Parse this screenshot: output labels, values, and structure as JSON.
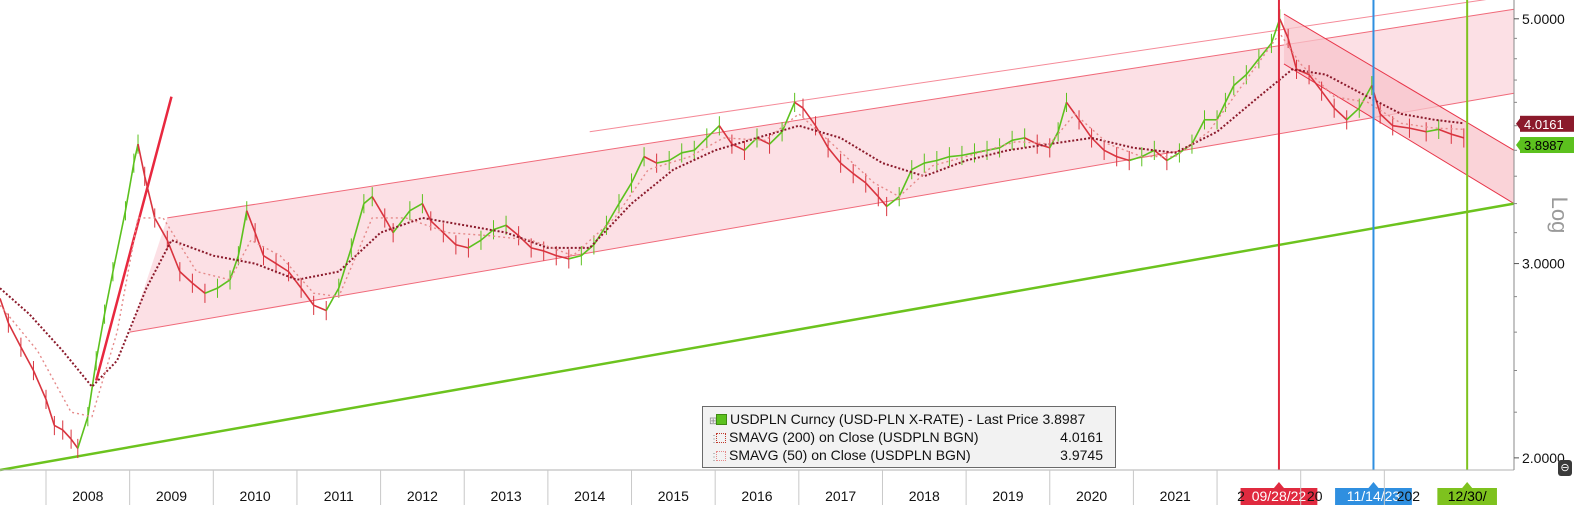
{
  "chart_data": {
    "type": "line",
    "y_scale": "log",
    "ylim": [
      1.95,
      5.2
    ],
    "y_ticks": [
      {
        "value": 5.0,
        "label": "5.0000"
      },
      {
        "value": 3.0,
        "label": "3.0000"
      },
      {
        "value": 2.0,
        "label": "2.0000"
      }
    ],
    "x_ticks": [
      "2008",
      "2009",
      "2010",
      "2011",
      "2012",
      "2013",
      "2014",
      "2015",
      "2016",
      "2017",
      "2018",
      "2019",
      "2020",
      "2021",
      "2022",
      "2023",
      "2024"
    ],
    "x_range": [
      2007.45,
      2025.55
    ],
    "axis_label_right": "Log",
    "last_price_tag": {
      "value": 3.8987,
      "label": "3.8987",
      "color": "#5cc11e"
    },
    "sma200_tag": {
      "value": 4.0161,
      "label": "4.0161",
      "color": "#8b1a2b"
    },
    "series": [
      {
        "name": "USDPLN Curncy (USD-PLN X-RATE) - Last Price 3.8987",
        "style": "candles",
        "color_up": "#5cc11e",
        "color_down": "#d9343f",
        "points": [
          [
            2007.45,
            2.79
          ],
          [
            2007.55,
            2.65
          ],
          [
            2007.7,
            2.52
          ],
          [
            2007.85,
            2.4
          ],
          [
            2008.0,
            2.26
          ],
          [
            2008.1,
            2.14
          ],
          [
            2008.2,
            2.12
          ],
          [
            2008.3,
            2.08
          ],
          [
            2008.38,
            2.04
          ],
          [
            2008.5,
            2.18
          ],
          [
            2008.6,
            2.45
          ],
          [
            2008.7,
            2.7
          ],
          [
            2008.8,
            2.95
          ],
          [
            2008.95,
            3.35
          ],
          [
            2009.05,
            3.7
          ],
          [
            2009.1,
            3.85
          ],
          [
            2009.18,
            3.6
          ],
          [
            2009.3,
            3.3
          ],
          [
            2009.45,
            3.15
          ],
          [
            2009.6,
            2.95
          ],
          [
            2009.75,
            2.88
          ],
          [
            2009.9,
            2.82
          ],
          [
            2010.05,
            2.85
          ],
          [
            2010.2,
            2.9
          ],
          [
            2010.3,
            3.05
          ],
          [
            2010.4,
            3.35
          ],
          [
            2010.5,
            3.2
          ],
          [
            2010.6,
            3.05
          ],
          [
            2010.75,
            3.0
          ],
          [
            2010.9,
            2.95
          ],
          [
            2011.05,
            2.85
          ],
          [
            2011.2,
            2.75
          ],
          [
            2011.35,
            2.72
          ],
          [
            2011.5,
            2.85
          ],
          [
            2011.65,
            3.1
          ],
          [
            2011.8,
            3.4
          ],
          [
            2011.9,
            3.45
          ],
          [
            2012.05,
            3.3
          ],
          [
            2012.15,
            3.2
          ],
          [
            2012.35,
            3.35
          ],
          [
            2012.5,
            3.4
          ],
          [
            2012.6,
            3.28
          ],
          [
            2012.75,
            3.2
          ],
          [
            2012.9,
            3.12
          ],
          [
            2013.05,
            3.1
          ],
          [
            2013.2,
            3.15
          ],
          [
            2013.35,
            3.22
          ],
          [
            2013.5,
            3.25
          ],
          [
            2013.65,
            3.18
          ],
          [
            2013.8,
            3.1
          ],
          [
            2013.95,
            3.08
          ],
          [
            2014.1,
            3.05
          ],
          [
            2014.25,
            3.03
          ],
          [
            2014.4,
            3.05
          ],
          [
            2014.55,
            3.12
          ],
          [
            2014.7,
            3.25
          ],
          [
            2014.85,
            3.4
          ],
          [
            2015.0,
            3.55
          ],
          [
            2015.15,
            3.75
          ],
          [
            2015.3,
            3.7
          ],
          [
            2015.45,
            3.72
          ],
          [
            2015.6,
            3.78
          ],
          [
            2015.75,
            3.8
          ],
          [
            2015.9,
            3.9
          ],
          [
            2016.05,
            4.0
          ],
          [
            2016.2,
            3.85
          ],
          [
            2016.35,
            3.8
          ],
          [
            2016.5,
            3.9
          ],
          [
            2016.65,
            3.85
          ],
          [
            2016.8,
            3.95
          ],
          [
            2016.95,
            4.2
          ],
          [
            2017.05,
            4.15
          ],
          [
            2017.2,
            4.0
          ],
          [
            2017.35,
            3.82
          ],
          [
            2017.5,
            3.7
          ],
          [
            2017.65,
            3.62
          ],
          [
            2017.8,
            3.55
          ],
          [
            2017.95,
            3.45
          ],
          [
            2018.05,
            3.38
          ],
          [
            2018.2,
            3.45
          ],
          [
            2018.35,
            3.65
          ],
          [
            2018.5,
            3.7
          ],
          [
            2018.65,
            3.72
          ],
          [
            2018.8,
            3.75
          ],
          [
            2018.95,
            3.76
          ],
          [
            2019.1,
            3.78
          ],
          [
            2019.25,
            3.8
          ],
          [
            2019.4,
            3.82
          ],
          [
            2019.55,
            3.88
          ],
          [
            2019.7,
            3.9
          ],
          [
            2019.85,
            3.85
          ],
          [
            2020.0,
            3.82
          ],
          [
            2020.1,
            3.95
          ],
          [
            2020.2,
            4.2
          ],
          [
            2020.35,
            4.05
          ],
          [
            2020.5,
            3.9
          ],
          [
            2020.65,
            3.8
          ],
          [
            2020.8,
            3.75
          ],
          [
            2020.95,
            3.72
          ],
          [
            2021.1,
            3.75
          ],
          [
            2021.25,
            3.8
          ],
          [
            2021.4,
            3.72
          ],
          [
            2021.55,
            3.78
          ],
          [
            2021.7,
            3.85
          ],
          [
            2021.85,
            4.05
          ],
          [
            2022.0,
            4.05
          ],
          [
            2022.1,
            4.2
          ],
          [
            2022.2,
            4.35
          ],
          [
            2022.35,
            4.45
          ],
          [
            2022.5,
            4.6
          ],
          [
            2022.65,
            4.75
          ],
          [
            2022.75,
            5.0
          ],
          [
            2022.85,
            4.8
          ],
          [
            2022.95,
            4.5
          ],
          [
            2023.1,
            4.45
          ],
          [
            2023.25,
            4.3
          ],
          [
            2023.4,
            4.15
          ],
          [
            2023.55,
            4.05
          ],
          [
            2023.7,
            4.15
          ],
          [
            2023.85,
            4.35
          ],
          [
            2023.95,
            4.1
          ],
          [
            2024.1,
            4.0
          ],
          [
            2024.3,
            3.98
          ],
          [
            2024.5,
            3.95
          ],
          [
            2024.65,
            3.97
          ],
          [
            2024.8,
            3.93
          ],
          [
            2024.95,
            3.9
          ]
        ]
      },
      {
        "name": "SMAVG (200)  on Close (USDPLN BGN)",
        "value_label": "4.0161",
        "style": "dotted",
        "color": "#8b1a2b",
        "points": [
          [
            2007.45,
            2.85
          ],
          [
            2007.8,
            2.7
          ],
          [
            2008.2,
            2.5
          ],
          [
            2008.55,
            2.32
          ],
          [
            2008.85,
            2.45
          ],
          [
            2009.2,
            2.85
          ],
          [
            2009.5,
            3.15
          ],
          [
            2010.0,
            3.05
          ],
          [
            2010.5,
            3.0
          ],
          [
            2011.0,
            2.9
          ],
          [
            2011.5,
            2.95
          ],
          [
            2012.0,
            3.2
          ],
          [
            2012.5,
            3.3
          ],
          [
            2013.0,
            3.25
          ],
          [
            2013.5,
            3.2
          ],
          [
            2014.0,
            3.1
          ],
          [
            2014.5,
            3.1
          ],
          [
            2015.0,
            3.4
          ],
          [
            2015.5,
            3.65
          ],
          [
            2016.0,
            3.8
          ],
          [
            2016.5,
            3.9
          ],
          [
            2017.0,
            4.0
          ],
          [
            2017.5,
            3.9
          ],
          [
            2018.0,
            3.7
          ],
          [
            2018.5,
            3.6
          ],
          [
            2019.0,
            3.72
          ],
          [
            2019.5,
            3.8
          ],
          [
            2020.0,
            3.85
          ],
          [
            2020.5,
            3.9
          ],
          [
            2021.0,
            3.82
          ],
          [
            2021.5,
            3.78
          ],
          [
            2022.0,
            3.95
          ],
          [
            2022.5,
            4.25
          ],
          [
            2022.9,
            4.5
          ],
          [
            2023.3,
            4.45
          ],
          [
            2023.8,
            4.25
          ],
          [
            2024.2,
            4.1
          ],
          [
            2024.6,
            4.05
          ],
          [
            2024.95,
            4.02
          ]
        ]
      },
      {
        "name": "SMAVG (50)  on Close (USDPLN BGN)",
        "value_label": "3.9745",
        "style": "dotted",
        "color": "#e58a8a",
        "points": [
          [
            2007.45,
            2.75
          ],
          [
            2007.9,
            2.5
          ],
          [
            2008.3,
            2.2
          ],
          [
            2008.55,
            2.18
          ],
          [
            2008.85,
            2.6
          ],
          [
            2009.1,
            3.3
          ],
          [
            2009.4,
            3.3
          ],
          [
            2009.8,
            2.95
          ],
          [
            2010.2,
            2.9
          ],
          [
            2010.45,
            3.15
          ],
          [
            2010.8,
            3.05
          ],
          [
            2011.2,
            2.82
          ],
          [
            2011.5,
            2.8
          ],
          [
            2011.9,
            3.3
          ],
          [
            2012.3,
            3.3
          ],
          [
            2012.8,
            3.2
          ],
          [
            2013.3,
            3.18
          ],
          [
            2013.8,
            3.15
          ],
          [
            2014.3,
            3.05
          ],
          [
            2014.8,
            3.3
          ],
          [
            2015.2,
            3.65
          ],
          [
            2015.7,
            3.75
          ],
          [
            2016.1,
            3.9
          ],
          [
            2016.6,
            3.88
          ],
          [
            2017.0,
            4.1
          ],
          [
            2017.4,
            3.85
          ],
          [
            2017.9,
            3.55
          ],
          [
            2018.2,
            3.45
          ],
          [
            2018.6,
            3.68
          ],
          [
            2019.1,
            3.77
          ],
          [
            2019.6,
            3.87
          ],
          [
            2020.0,
            3.85
          ],
          [
            2020.3,
            4.1
          ],
          [
            2020.7,
            3.85
          ],
          [
            2021.1,
            3.75
          ],
          [
            2021.5,
            3.75
          ],
          [
            2021.9,
            3.95
          ],
          [
            2022.3,
            4.35
          ],
          [
            2022.75,
            4.85
          ],
          [
            2023.0,
            4.55
          ],
          [
            2023.4,
            4.25
          ],
          [
            2023.8,
            4.2
          ],
          [
            2024.2,
            4.02
          ],
          [
            2024.6,
            3.98
          ],
          [
            2024.95,
            3.97
          ]
        ]
      }
    ],
    "annotations": {
      "channel_upper": [
        [
          2009.45,
          3.3
        ],
        [
          2025.55,
          5.1
        ]
      ],
      "channel_lower": [
        [
          2009.0,
          2.6
        ],
        [
          2025.55,
          4.28
        ]
      ],
      "green_trendline": [
        [
          2007.45,
          1.95
        ],
        [
          2025.55,
          3.4
        ]
      ],
      "steep_trendline": [
        [
          2008.6,
          2.35
        ],
        [
          2009.5,
          4.25
        ]
      ],
      "down_channel_upper": [
        [
          2022.8,
          5.05
        ],
        [
          2025.55,
          3.8
        ]
      ],
      "down_channel_lower": [
        [
          2022.8,
          4.55
        ],
        [
          2025.55,
          3.4
        ]
      ],
      "vlines": [
        {
          "x": 2022.74,
          "label": "09/28/22",
          "color": "#e02a3f"
        },
        {
          "x": 2023.87,
          "label": "11/14/23",
          "color": "#2f8fe0"
        },
        {
          "x": 2024.99,
          "label": "12/30/",
          "color": "#7ec21e"
        }
      ]
    }
  },
  "legend": {
    "items": [
      {
        "label": "USDPLN Curncy (USD-PLN X-RATE) - Last Price 3.8987",
        "value": ""
      },
      {
        "label": "SMAVG (200)  on Close (USDPLN BGN)",
        "value": "4.0161"
      },
      {
        "label": "SMAVG (50)  on Close (USDPLN BGN)",
        "value": "3.9745"
      }
    ]
  },
  "partial_tick_labels": {
    "2022": "2",
    "2023": "20",
    "2024": "202"
  }
}
